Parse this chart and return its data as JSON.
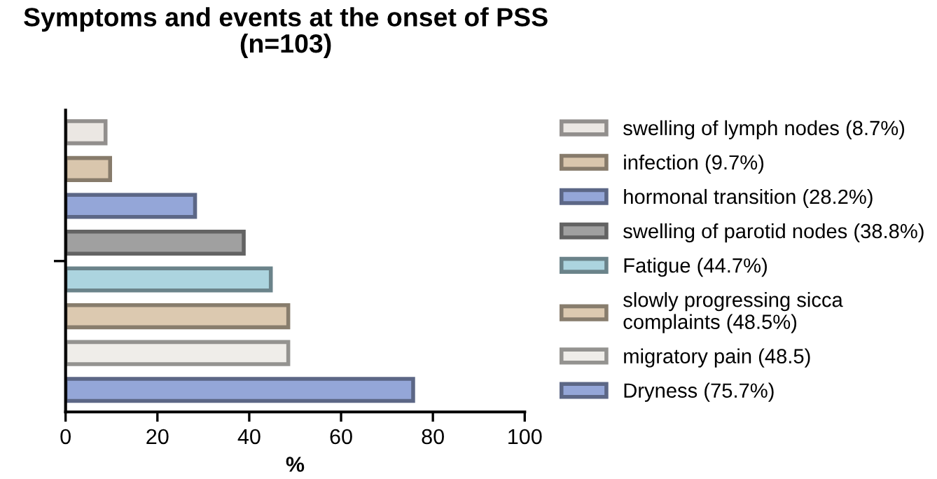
{
  "chart_data": {
    "type": "bar",
    "orientation": "horizontal",
    "title": "Symptoms and events at the onset of PSS\n(n=103)",
    "xlabel": "%",
    "categories": [
      null,
      null,
      null,
      null,
      null,
      null,
      null,
      null
    ],
    "series": [
      {
        "name": "swelling of lymph nodes (8.7%)",
        "color": "#ebe7e3",
        "values": [
          8.7,
          null,
          null,
          null,
          null,
          null,
          null,
          null
        ]
      },
      {
        "name": "infection (9.7%)",
        "color": "#d9c6ad",
        "values": [
          null,
          9.7,
          null,
          null,
          null,
          null,
          null,
          null
        ]
      },
      {
        "name": "hormonal transition (28.2%)",
        "color": "#94a6d8",
        "values": [
          null,
          null,
          28.2,
          null,
          null,
          null,
          null,
          null
        ]
      },
      {
        "name": "swelling of parotid nodes (38.8%)",
        "color": "#a0a0a0",
        "values": [
          null,
          null,
          null,
          38.8,
          null,
          null,
          null,
          null
        ]
      },
      {
        "name": "Fatigue (44.7%)",
        "color": "#acd4df",
        "values": [
          null,
          null,
          null,
          null,
          44.7,
          null,
          null,
          null
        ]
      },
      {
        "name": "slowly progressing sicca\ncomplaints (48.5%)",
        "color": "#dcc9b0",
        "values": [
          null,
          null,
          null,
          null,
          null,
          48.5,
          null,
          null
        ]
      },
      {
        "name": "migratory pain (48.5)",
        "color": "#efede9",
        "values": [
          null,
          null,
          null,
          null,
          null,
          null,
          48.5,
          null
        ]
      },
      {
        "name": "Dryness (75.7%)",
        "color": "#94a6d8",
        "values": [
          null,
          null,
          null,
          null,
          null,
          null,
          null,
          75.7
        ]
      }
    ],
    "xlim": [
      0,
      100
    ],
    "xticks": [
      0,
      20,
      40,
      60,
      80,
      100
    ],
    "grid": false,
    "legend": "right"
  }
}
